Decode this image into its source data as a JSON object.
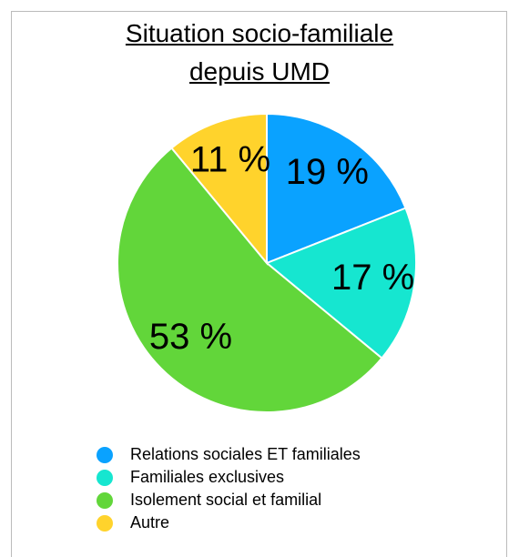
{
  "chart_data": {
    "type": "pie",
    "title": "Situation socio-familiale depuis UMD",
    "categories": [
      "Relations sociales ET familiales",
      "Familiales exclusives",
      "Isolement social et familial",
      "Autre"
    ],
    "values": [
      19,
      17,
      53,
      11
    ],
    "value_labels": [
      "19 %",
      "17 %",
      "53 %",
      "11 %"
    ],
    "colors": [
      "#0aa2ff",
      "#16e6d0",
      "#62d63a",
      "#ffd32c"
    ]
  }
}
